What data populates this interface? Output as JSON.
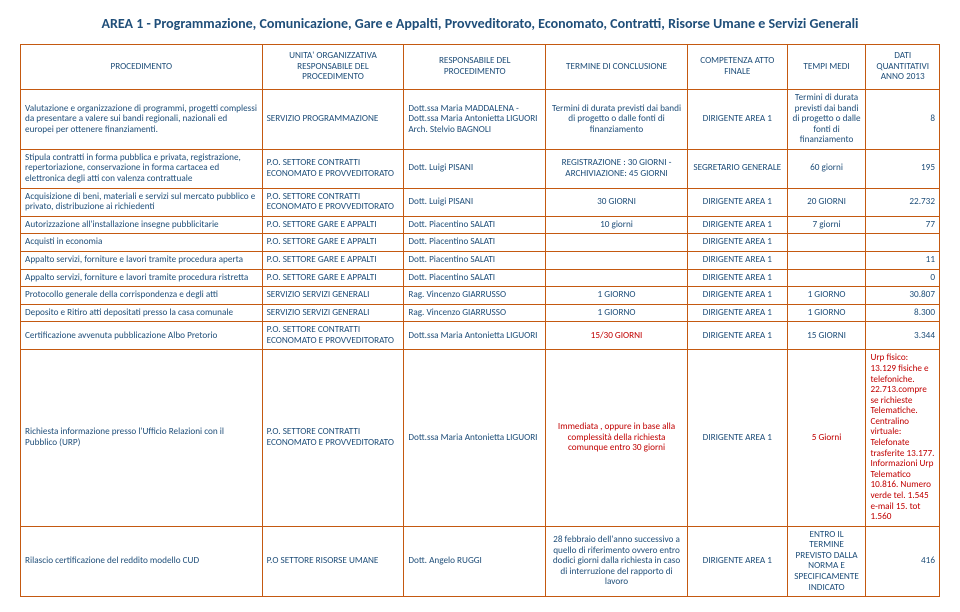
{
  "title": "AREA 1 - Programmazione, Comunicazione, Gare e Appalti, Provveditorato, Economato, Contratti, Risorse Umane e Servizi Generali",
  "headers": {
    "c0": "PROCEDIMENTO",
    "c1": "UNITA' ORGANIZZATIVA RESPONSABILE DEL PROCEDIMENTO",
    "c2": "RESPONSABILE DEL PROCEDIMENTO",
    "c3": "TERMINE DI CONCLUSIONE",
    "c4": "COMPETENZA ATTO FINALE",
    "c5": "TEMPI MEDI",
    "c6": "DATI QUANTITATIVI ANNO 2013"
  },
  "rows": [
    {
      "c0": "Valutazione e organizzazione di programmi, progetti complessi da presentare a valere sui bandi regionali, nazionali ed europei per ottenere finanziamenti.",
      "c1": "SERVIZIO PROGRAMMAZIONE",
      "c2": "Dott.ssa Maria MADDALENA - Dott.ssa Maria Antonietta LIGUORI Arch. Stelvio BAGNOLI",
      "c3": "Termini di durata previsti dai bandi di progetto o dalle fonti di finanziamento",
      "c4": "DIRIGENTE AREA 1",
      "c5": "Termini di durata previsti dai bandi di progetto o dalle fonti di finanziamento",
      "c6": "8"
    },
    {
      "c0": "Stipula contratti in forma pubblica e privata, registrazione, repertoriazione, conservazione in forma cartacea ed elettronica degli atti con valenza contrattuale",
      "c1": "P.O. SETTORE CONTRATTI ECONOMATO E PROVVEDITORATO",
      "c2": "Dott. Luigi PISANI",
      "c3": "REGISTRAZIONE : 30 GIORNI - ARCHIVIAZIONE: 45 GIORNI",
      "c4": "SEGRETARIO GENERALE",
      "c5": "60 giorni",
      "c6": "195"
    },
    {
      "c0": "Acquisizione di beni, materiali e servizi sul mercato pubblico e privato, distribuzione ai richiedenti",
      "c1": "P.O. SETTORE CONTRATTI ECONOMATO E PROVVEDITORATO",
      "c2": "Dott. Luigi PISANI",
      "c3": "30 GIORNI",
      "c4": "DIRIGENTE AREA 1",
      "c5": "20 GIORNI",
      "c6": "22.732"
    },
    {
      "c0": "Autorizzazione all'installazione insegne pubblicitarie",
      "c1": "P.O. SETTORE GARE E APPALTI",
      "c2": "Dott. Piacentino SALATI",
      "c3": "10 giorni",
      "c4": "DIRIGENTE AREA 1",
      "c5": "7 giorni",
      "c6": "77"
    },
    {
      "c0": "Acquisti in economia",
      "c1": "P.O. SETTORE GARE E APPALTI",
      "c2": "Dott. Piacentino SALATI",
      "c3": "",
      "c4": "DIRIGENTE AREA 1",
      "c5": "",
      "c6": ""
    },
    {
      "c0": "Appalto servizi, forniture e lavori tramite procedura aperta",
      "c1": "P.O. SETTORE GARE E APPALTI",
      "c2": "Dott. Piacentino SALATI",
      "c3": "",
      "c4": "DIRIGENTE AREA 1",
      "c5": "",
      "c6": "11"
    },
    {
      "c0": "Appalto servizi, forniture e lavori tramite procedura ristretta",
      "c1": "P.O. SETTORE GARE E APPALTI",
      "c2": "Dott. Piacentino SALATI",
      "c3": "",
      "c4": "DIRIGENTE AREA 1",
      "c5": "",
      "c6": "0"
    },
    {
      "c0": "Protocollo generale della corrispondenza e degli atti",
      "c1": "SERVIZIO SERVIZI GENERALI",
      "c2": "Rag. Vincenzo GIARRUSSO",
      "c3": "1 GIORNO",
      "c4": "DIRIGENTE AREA 1",
      "c5": "1 GIORNO",
      "c6": "30.807"
    },
    {
      "c0": "Deposito e Ritiro atti depositati presso la casa comunale",
      "c1": "SERVIZIO SERVIZI GENERALI",
      "c2": "Rag. Vincenzo GIARRUSSO",
      "c3": "1 GIORNO",
      "c4": "DIRIGENTE AREA 1",
      "c5": "1 GIORNO",
      "c6": "8.300"
    },
    {
      "c0": "Certificazione avvenuta pubblicazione Albo Pretorio",
      "c1": "P.O. SETTORE CONTRATTI ECONOMATO E PROVVEDITORATO",
      "c2": "Dott.ssa Maria Antonietta LIGUORI",
      "c3": "15/30 GIORNI",
      "c3_red": true,
      "c4": "DIRIGENTE AREA 1",
      "c5": "15 GIORNI",
      "c6": "3.344"
    },
    {
      "c0": "Richiesta informazione presso l'Ufficio Relazioni con il Pubblico (URP)",
      "c1": "P.O. SETTORE CONTRATTI ECONOMATO E PROVVEDITORATO",
      "c2": "Dott.ssa Maria Antonietta LIGUORI",
      "c3": "Immediata , oppure in base alla complessità della richiesta comunque entro 30 giorni",
      "c3_red": true,
      "c4": "DIRIGENTE AREA 1",
      "c5": "5 Giorni",
      "c5_red": true,
      "c6": "Urp fisico: 13.129 fisiche e telefoniche. 22.713.compre se richieste Telematiche. Centralino virtuale: Telefonate trasferite 13.177. Informazioni Urp Telematico 10.816. Numero verde tel. 1.545 e-mail 15. tot 1.560",
      "c6_red": true,
      "tall": true
    },
    {
      "c0": "Rilascio certificazione del reddito modello CUD",
      "c1": "P.O SETTORE RISORSE UMANE",
      "c2": "Dott. Angelo RUGGI",
      "c3": "28 febbraio dell'anno successivo a quello di riferimento ovvero entro dodici giorni dalla richiesta in caso di interruzione del rapporto di lavoro",
      "c4": "DIRIGENTE AREA 1",
      "c5": "ENTRO IL TERMINE PREVISTO DALLA NORMA E SPECIFICAMENTE INDICATO",
      "c6": "416",
      "tall2": true
    }
  ]
}
